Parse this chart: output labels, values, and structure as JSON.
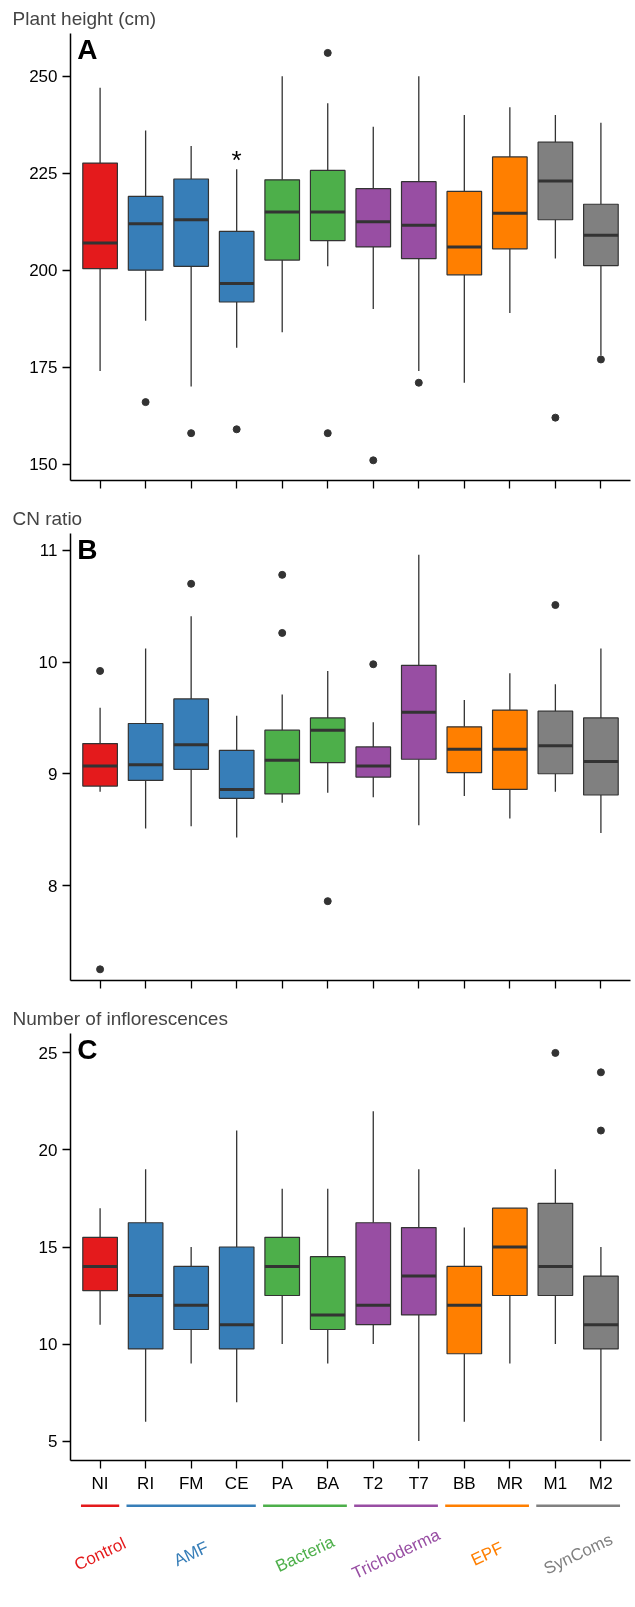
{
  "chart_data": [
    {
      "type": "box",
      "title": "Plant height (cm)",
      "categories": [
        "NI",
        "RI",
        "FM",
        "CE",
        "PA",
        "BA",
        "T2",
        "T7",
        "BB",
        "MR",
        "M1",
        "M2"
      ],
      "colors": [
        "#e41a1c",
        "#377eb8",
        "#377eb8",
        "#377eb8",
        "#4daf4a",
        "#4daf4a",
        "#984ea3",
        "#984ea3",
        "#ff7f00",
        "#ff7f00",
        "#808080",
        "#808080"
      ],
      "boxes": [
        {
          "low": 174,
          "q1": 200.4,
          "median": 207,
          "q3": 227.6,
          "high": 247
        },
        {
          "low": 187,
          "q1": 200,
          "median": 212,
          "q3": 219,
          "high": 236,
          "outliers": [
            166
          ]
        },
        {
          "low": 170,
          "q1": 201,
          "median": 213,
          "q3": 223.5,
          "high": 232,
          "outliers": [
            158
          ]
        },
        {
          "low": 180,
          "q1": 191.8,
          "median": 196.6,
          "q3": 210,
          "high": 226,
          "outliers": [
            159
          ]
        },
        {
          "low": 184,
          "q1": 202.6,
          "median": 215,
          "q3": 223.3,
          "high": 250
        },
        {
          "low": 201,
          "q1": 207.6,
          "median": 215,
          "q3": 225.7,
          "high": 243,
          "outliers": [
            256,
            158
          ]
        },
        {
          "low": 190,
          "q1": 206,
          "median": 212.5,
          "q3": 221,
          "high": 237,
          "outliers": [
            151
          ]
        },
        {
          "low": 174,
          "q1": 203,
          "median": 211.6,
          "q3": 222.8,
          "high": 250,
          "outliers": [
            171
          ]
        },
        {
          "low": 171,
          "q1": 198.8,
          "median": 206,
          "q3": 220.3,
          "high": 240
        },
        {
          "low": 189,
          "q1": 205.5,
          "median": 214.7,
          "q3": 229.2,
          "high": 242
        },
        {
          "low": 203,
          "q1": 213,
          "median": 223,
          "q3": 233,
          "high": 240,
          "outliers": [
            162
          ]
        },
        {
          "low": 178,
          "q1": 201.2,
          "median": 209,
          "q3": 217,
          "high": 238,
          "outliers": [
            177
          ]
        }
      ],
      "ylim": [
        145.8,
        261
      ],
      "yticks": [
        150,
        175,
        200,
        225,
        250
      ],
      "tick_labels": "y",
      "grid": false,
      "legend": false,
      "annotations": [
        "A",
        {
          "text": "*",
          "x": "CE",
          "y": 226
        }
      ]
    },
    {
      "type": "box",
      "title": "CN ratio",
      "categories": [
        "NI",
        "RI",
        "FM",
        "CE",
        "PA",
        "BA",
        "T2",
        "T7",
        "BB",
        "MR",
        "M1",
        "M2"
      ],
      "colors": [
        "#e41a1c",
        "#377eb8",
        "#377eb8",
        "#377eb8",
        "#4daf4a",
        "#4daf4a",
        "#984ea3",
        "#984ea3",
        "#ff7f00",
        "#ff7f00",
        "#808080",
        "#808080"
      ],
      "boxes": [
        {
          "low": 8.84,
          "q1": 8.89,
          "median": 9.07,
          "q3": 9.27,
          "high": 9.59,
          "outliers": [
            9.92,
            7.25
          ]
        },
        {
          "low": 8.51,
          "q1": 8.94,
          "median": 9.08,
          "q3": 9.45,
          "high": 10.12
        },
        {
          "low": 8.53,
          "q1": 9.04,
          "median": 9.26,
          "q3": 9.67,
          "high": 10.41,
          "outliers": [
            10.7
          ]
        },
        {
          "low": 8.43,
          "q1": 8.78,
          "median": 8.86,
          "q3": 9.21,
          "high": 9.52
        },
        {
          "low": 8.74,
          "q1": 8.82,
          "median": 9.12,
          "q3": 9.39,
          "high": 9.71,
          "outliers": [
            10.78,
            10.26
          ]
        },
        {
          "low": 8.83,
          "q1": 9.1,
          "median": 9.39,
          "q3": 9.5,
          "high": 9.92,
          "outliers": [
            7.86
          ]
        },
        {
          "low": 8.79,
          "q1": 8.97,
          "median": 9.07,
          "q3": 9.24,
          "high": 9.46,
          "outliers": [
            9.98
          ]
        },
        {
          "low": 8.54,
          "q1": 9.13,
          "median": 9.55,
          "q3": 9.97,
          "high": 10.96
        },
        {
          "low": 8.8,
          "q1": 9.01,
          "median": 9.22,
          "q3": 9.42,
          "high": 9.66
        },
        {
          "low": 8.6,
          "q1": 8.86,
          "median": 9.22,
          "q3": 9.57,
          "high": 9.9
        },
        {
          "low": 8.84,
          "q1": 9.0,
          "median": 9.25,
          "q3": 9.56,
          "high": 9.8,
          "outliers": [
            10.51
          ]
        },
        {
          "low": 8.47,
          "q1": 8.81,
          "median": 9.11,
          "q3": 9.5,
          "high": 10.12
        }
      ],
      "ylim": [
        7.15,
        11.15
      ],
      "yticks": [
        8,
        9,
        10,
        11
      ],
      "tick_labels": "y",
      "grid": false,
      "legend": false,
      "annotations": [
        "B"
      ]
    },
    {
      "type": "box",
      "title": "Number of inflorescences",
      "categories": [
        "NI",
        "RI",
        "FM",
        "CE",
        "PA",
        "BA",
        "T2",
        "T7",
        "BB",
        "MR",
        "M1",
        "M2"
      ],
      "colors": [
        "#e41a1c",
        "#377eb8",
        "#377eb8",
        "#377eb8",
        "#4daf4a",
        "#4daf4a",
        "#984ea3",
        "#984ea3",
        "#ff7f00",
        "#ff7f00",
        "#808080",
        "#808080"
      ],
      "boxes": [
        {
          "low": 11,
          "q1": 12.75,
          "median": 14,
          "q3": 15.5,
          "high": 17
        },
        {
          "low": 6,
          "q1": 9.75,
          "median": 12.5,
          "q3": 16.25,
          "high": 19
        },
        {
          "low": 9,
          "q1": 10.75,
          "median": 12,
          "q3": 14,
          "high": 15
        },
        {
          "low": 7,
          "q1": 9.75,
          "median": 11,
          "q3": 15,
          "high": 21
        },
        {
          "low": 10,
          "q1": 12.5,
          "median": 14,
          "q3": 15.5,
          "high": 18
        },
        {
          "low": 9,
          "q1": 10.75,
          "median": 11.5,
          "q3": 14.5,
          "high": 18
        },
        {
          "low": 10,
          "q1": 11,
          "median": 12,
          "q3": 16.25,
          "high": 22
        },
        {
          "low": 5,
          "q1": 11.5,
          "median": 13.5,
          "q3": 16,
          "high": 19
        },
        {
          "low": 6,
          "q1": 9.5,
          "median": 12,
          "q3": 14,
          "high": 16
        },
        {
          "low": 9,
          "q1": 12.5,
          "median": 15,
          "q3": 17,
          "high": 17
        },
        {
          "low": 10,
          "q1": 12.5,
          "median": 14,
          "q3": 17.25,
          "high": 19,
          "outliers": [
            25
          ]
        },
        {
          "low": 5,
          "q1": 9.75,
          "median": 11,
          "q3": 13.5,
          "high": 15,
          "outliers": [
            24,
            21
          ]
        }
      ],
      "ylim": [
        4,
        26
      ],
      "yticks": [
        5,
        10,
        15,
        20,
        25
      ],
      "grid": false,
      "legend": false,
      "annotations": [
        "C",
        "Control",
        "AMF",
        "Bacteria",
        "Trichoderma",
        "EPF",
        "SynComs"
      ]
    }
  ]
}
